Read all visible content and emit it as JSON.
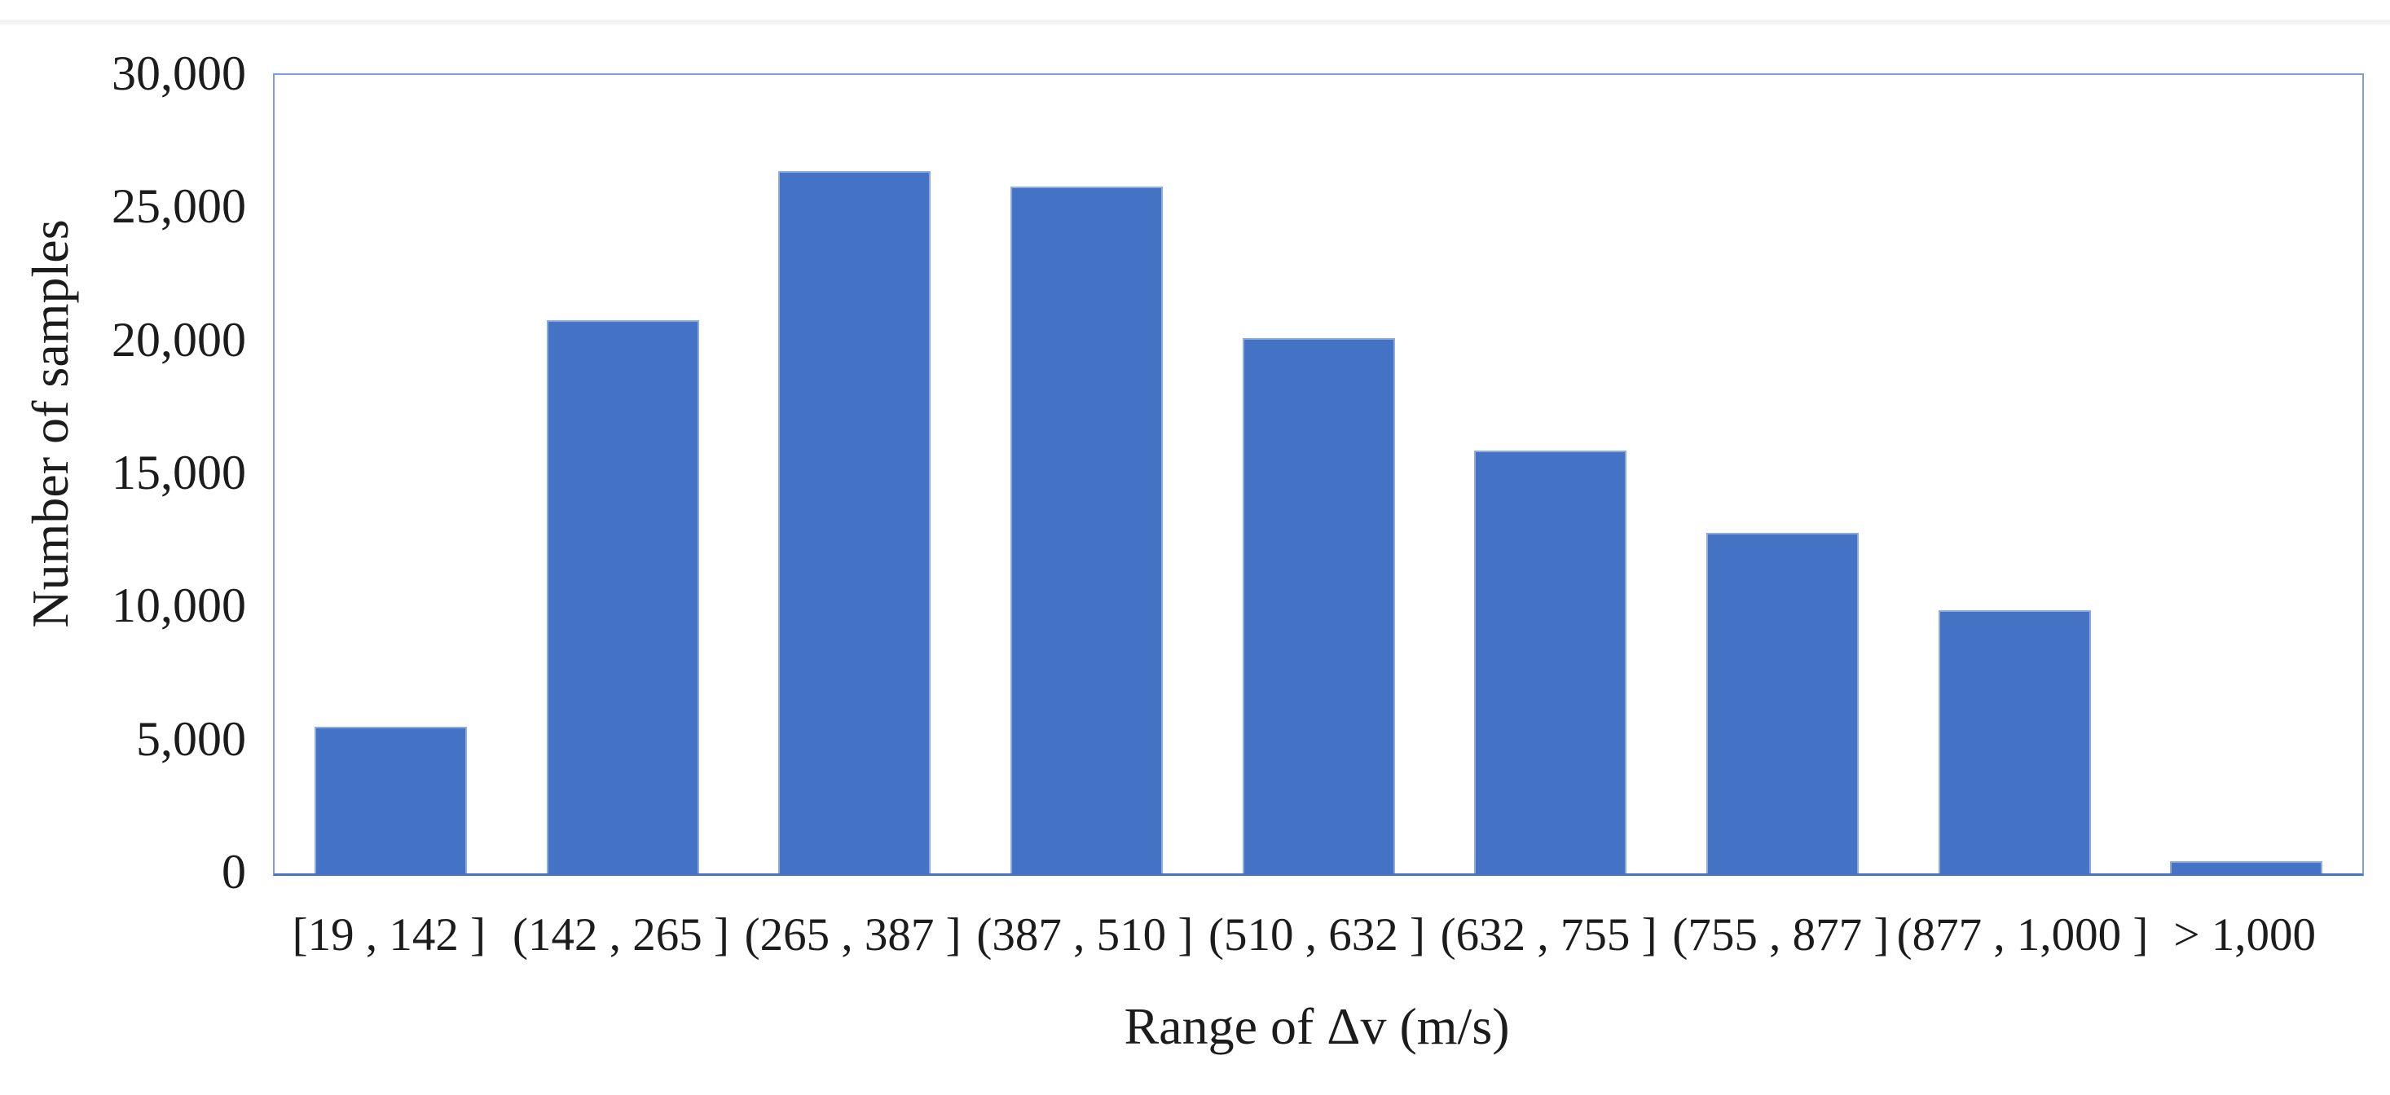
{
  "figure": {
    "background": "#ffffff"
  },
  "chart_data": {
    "type": "bar",
    "title": "",
    "xlabel": "Range of Δv (m/s)",
    "ylabel": "Number of samples",
    "categories": [
      "[19 , 142 ]",
      "(142 , 265 ]",
      "(265 , 387 ]",
      "(387 , 510 ]",
      "(510 , 632 ]",
      "(632 , 755 ]",
      "(755 , 877 ]",
      "(877 , 1,000 ]",
      "> 1,000"
    ],
    "values": [
      5500,
      20800,
      26400,
      25800,
      20100,
      15900,
      12800,
      9900,
      450
    ],
    "ylim": [
      0,
      30000
    ],
    "y_ticks": [
      {
        "value": 30000,
        "label": "30,000"
      },
      {
        "value": 25000,
        "label": "25,000"
      },
      {
        "value": 20000,
        "label": "20,000"
      },
      {
        "value": 15000,
        "label": "15,000"
      },
      {
        "value": 10000,
        "label": "10,000"
      },
      {
        "value": 5000,
        "label": "5,000"
      },
      {
        "value": 0,
        "label": "0"
      }
    ],
    "grid": false,
    "legend": null,
    "colors": {
      "bar_fill": "#4472C4",
      "bar_outline": "#8FAADC",
      "plot_border": "#7E9CD9",
      "axis_line": "#4472C4",
      "text": "#1c1c1c"
    }
  }
}
